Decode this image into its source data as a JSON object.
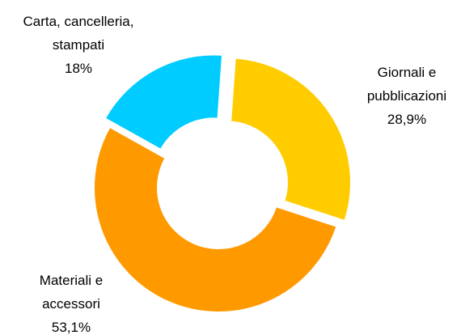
{
  "chart_data": {
    "type": "pie",
    "variant": "donut",
    "slices": [
      {
        "name_lines": [
          "Giornali e",
          "pubblicazioni"
        ],
        "value_label": "28,9%",
        "value": 28.9,
        "color": "#FFCC00"
      },
      {
        "name_lines": [
          "Materiali e",
          "accessori"
        ],
        "value_label": "53,1%",
        "value": 53.1,
        "color": "#FF9900"
      },
      {
        "name_lines": [
          "Carta, cancelleria,",
          "stampati"
        ],
        "value_label": "18%",
        "value": 18,
        "color": "#00CCFF"
      }
    ]
  }
}
